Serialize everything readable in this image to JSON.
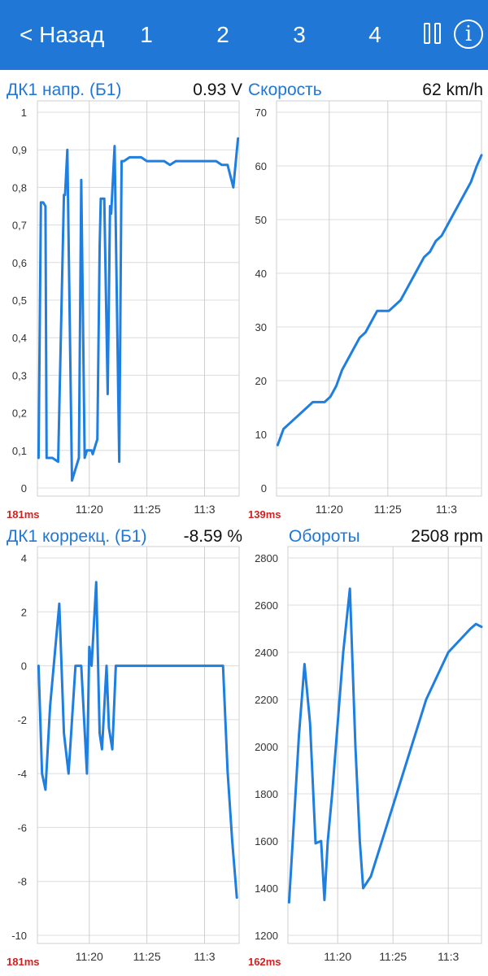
{
  "topbar": {
    "back_label": "< Назад",
    "tabs": [
      "1",
      "2",
      "3",
      "4"
    ],
    "pause_icon": "pause-icon",
    "info_icon": "info-icon",
    "info_glyph": "i",
    "color": "#2077d6"
  },
  "chart_data": [
    {
      "type": "line",
      "title": "ДК1 напр. (Б1)",
      "value_text": "0.93  V",
      "refresh_text": "181ms",
      "ylim": [
        0,
        1.0
      ],
      "yticks": [
        0,
        0.1,
        0.2,
        0.3,
        0.4,
        0.5,
        0.6,
        0.7,
        0.8,
        0.9,
        1
      ],
      "ytick_labels": [
        "0",
        "0,1",
        "0,2",
        "0,3",
        "0,4",
        "0,5",
        "0,6",
        "0,7",
        "0,8",
        "0,9",
        "1"
      ],
      "xlim": [
        11.5,
        29
      ],
      "xticks": [
        16,
        21,
        26
      ],
      "xtick_labels": [
        "11:20",
        "11:25",
        "11:3"
      ],
      "series": [
        {
          "name": "ДК1 напр. (Б1)",
          "x": [
            11.6,
            11.8,
            12,
            12.2,
            12.3,
            12.8,
            13.3,
            13.8,
            13.9,
            14.1,
            14.5,
            15.1,
            15.3,
            15.6,
            15.8,
            16.2,
            16.3,
            16.7,
            16.9,
            17,
            17.3,
            17.6,
            17.8,
            17.9,
            18.2,
            18.6,
            18.8,
            19,
            19.5,
            20,
            20.5,
            21,
            21.5,
            22,
            22.5,
            23,
            23.5,
            24,
            24.5,
            25,
            25.5,
            26,
            26.5,
            27,
            27.5,
            28,
            28.5,
            28.9
          ],
          "y": [
            0.08,
            0.76,
            0.76,
            0.75,
            0.08,
            0.08,
            0.07,
            0.78,
            0.78,
            0.9,
            0.02,
            0.08,
            0.82,
            0.08,
            0.1,
            0.1,
            0.09,
            0.13,
            0.64,
            0.77,
            0.77,
            0.25,
            0.75,
            0.73,
            0.91,
            0.07,
            0.87,
            0.87,
            0.88,
            0.88,
            0.88,
            0.87,
            0.87,
            0.87,
            0.87,
            0.86,
            0.87,
            0.87,
            0.87,
            0.87,
            0.87,
            0.87,
            0.87,
            0.87,
            0.86,
            0.86,
            0.8,
            0.93
          ]
        }
      ]
    },
    {
      "type": "line",
      "title": "Скорость",
      "value_text": "62  km/h",
      "refresh_text": "139ms",
      "ylim": [
        0,
        70
      ],
      "yticks": [
        0,
        10,
        20,
        30,
        40,
        50,
        60,
        70
      ],
      "ytick_labels": [
        "0",
        "10",
        "20",
        "30",
        "40",
        "50",
        "60",
        "70"
      ],
      "xlim": [
        11.5,
        29
      ],
      "xticks": [
        16,
        21,
        26
      ],
      "xtick_labels": [
        "11:20",
        "11:25",
        "11:3"
      ],
      "series": [
        {
          "name": "Скорость",
          "x": [
            11.6,
            12.1,
            12.6,
            13.1,
            13.6,
            14.1,
            14.6,
            15.1,
            15.6,
            16.1,
            16.6,
            17.1,
            17.6,
            18.1,
            18.6,
            19.1,
            19.6,
            20.1,
            20.6,
            21.1,
            21.6,
            22.1,
            22.6,
            23.1,
            23.6,
            24.1,
            24.6,
            25.1,
            25.6,
            26.1,
            26.6,
            27.1,
            27.6,
            28.1,
            28.6,
            29
          ],
          "y": [
            8,
            11,
            12,
            13,
            14,
            15,
            16,
            16,
            16,
            17,
            19,
            22,
            24,
            26,
            28,
            29,
            31,
            33,
            33,
            33,
            34,
            35,
            37,
            39,
            41,
            43,
            44,
            46,
            47,
            49,
            51,
            53,
            55,
            57,
            60,
            62
          ]
        }
      ]
    },
    {
      "type": "line",
      "title": "ДК1 коррекц. (Б1)",
      "value_text": "-8.59  %",
      "refresh_text": "181ms",
      "ylim": [
        -10,
        4
      ],
      "yticks": [
        -10,
        -8,
        -6,
        -4,
        -2,
        0,
        2,
        4
      ],
      "ytick_labels": [
        "-10",
        "-8",
        "-6",
        "-4",
        "-2",
        "0",
        "2",
        "4"
      ],
      "xlim": [
        11.5,
        29
      ],
      "xticks": [
        16,
        21,
        26
      ],
      "xtick_labels": [
        "11:20",
        "11:25",
        "11:3"
      ],
      "series": [
        {
          "name": "ДК1 коррекц. (Б1)",
          "x": [
            11.6,
            11.9,
            12.2,
            12.6,
            13.4,
            13.8,
            14.2,
            14.8,
            15.0,
            15.3,
            15.8,
            16.0,
            16.2,
            16.6,
            16.9,
            17.1,
            17.5,
            17.7,
            18.0,
            18.3,
            19,
            20,
            21,
            22,
            23,
            24,
            25,
            26,
            27,
            27.6,
            28.0,
            28.4,
            28.8
          ],
          "y": [
            0,
            -4.0,
            -4.6,
            -1.5,
            2.3,
            -2.5,
            -4.0,
            0,
            0,
            0,
            -4.0,
            0.7,
            0,
            3.1,
            -2.5,
            -3.1,
            0,
            -2.3,
            -3.1,
            0,
            0,
            0,
            0,
            0,
            0,
            0,
            0,
            0,
            0,
            0,
            -3.9,
            -6.5,
            -8.6
          ]
        }
      ]
    },
    {
      "type": "line",
      "title": "Обороты",
      "value_text": "2508  rpm",
      "refresh_text": "162ms",
      "ylim": [
        1200,
        2800
      ],
      "yticks": [
        1200,
        1400,
        1600,
        1800,
        2000,
        2200,
        2400,
        2600,
        2800
      ],
      "ytick_labels": [
        "1200",
        "1400",
        "1600",
        "1800",
        "2000",
        "2200",
        "2400",
        "2600",
        "2800"
      ],
      "xlim": [
        11.5,
        29
      ],
      "xticks": [
        16,
        21,
        26
      ],
      "xtick_labels": [
        "11:20",
        "11:25",
        "11:3"
      ],
      "series": [
        {
          "name": "Обороты",
          "x": [
            11.6,
            12.0,
            12.5,
            13.0,
            13.5,
            14.0,
            14.5,
            14.8,
            15.1,
            15.5,
            16.0,
            16.5,
            17.1,
            17.6,
            18.0,
            18.3,
            19,
            20,
            21,
            22,
            23,
            24,
            25,
            26,
            27,
            28,
            28.5,
            29
          ],
          "y": [
            1340,
            1650,
            2050,
            2350,
            2100,
            1590,
            1600,
            1350,
            1600,
            1800,
            2100,
            2400,
            2670,
            2000,
            1600,
            1400,
            1450,
            1600,
            1750,
            1900,
            2050,
            2200,
            2300,
            2400,
            2450,
            2500,
            2520,
            2508
          ]
        }
      ]
    }
  ]
}
